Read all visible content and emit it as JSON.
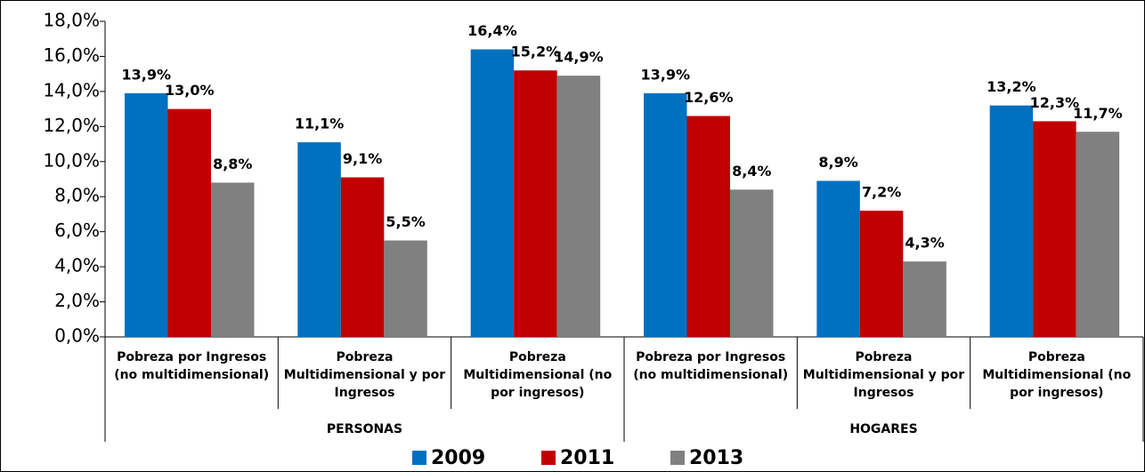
{
  "chart_data": {
    "type": "bar",
    "categories": [
      "Pobreza por Ingresos (no multidimensional)",
      "Pobreza Multidimensional y por Ingresos",
      "Pobreza Multidimensional (no por ingresos)",
      "Pobreza por Ingresos (no multidimensional)",
      "Pobreza Multidimensional y por Ingresos",
      "Pobreza Multidimensional (no por ingresos)"
    ],
    "category_groups": [
      "PERSONAS",
      "HOGARES"
    ],
    "series": [
      {
        "name": "2009",
        "color": "#0070c0",
        "values": [
          13.9,
          11.1,
          16.4,
          13.9,
          8.9,
          13.2
        ],
        "value_labels": [
          "13,9%",
          "11,1%",
          "16,4%",
          "13,9%",
          "8,9%",
          "13,2%"
        ]
      },
      {
        "name": "2011",
        "color": "#c00000",
        "values": [
          13.0,
          9.1,
          15.2,
          12.6,
          7.2,
          12.3
        ],
        "value_labels": [
          "13,0%",
          "9,1%",
          "15,2%",
          "12,6%",
          "7,2%",
          "12,3%"
        ]
      },
      {
        "name": "2013",
        "color": "#808080",
        "values": [
          8.8,
          5.5,
          14.9,
          8.4,
          4.3,
          11.7
        ],
        "value_labels": [
          "8,8%",
          "5,5%",
          "14,9%",
          "8,4%",
          "4,3%",
          "11,7%"
        ]
      }
    ],
    "ylim": [
      0,
      18
    ],
    "yticks": [
      {
        "value": 0,
        "label": "0,0%"
      },
      {
        "value": 2,
        "label": "2,0%"
      },
      {
        "value": 4,
        "label": "4,0%"
      },
      {
        "value": 6,
        "label": "6,0%"
      },
      {
        "value": 8,
        "label": "8,0%"
      },
      {
        "value": 10,
        "label": "10,0%"
      },
      {
        "value": 12,
        "label": "12,0%"
      },
      {
        "value": 14,
        "label": "14,0%"
      },
      {
        "value": 16,
        "label": "16,0%"
      },
      {
        "value": 18,
        "label": "18,0%"
      }
    ],
    "legend": "bottom"
  }
}
